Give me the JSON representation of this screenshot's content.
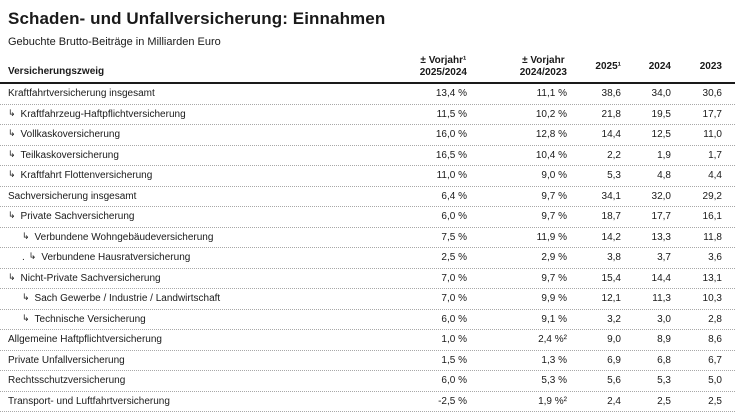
{
  "page": {
    "title": "Schaden- und Unfallversicherung: Einnahmen",
    "subtitle": "Gebuchte Brutto-Beiträge in Milliarden Euro"
  },
  "table": {
    "row_header": "Versicherungszweig",
    "branch_glyph": "↳",
    "artifact_dot": ".",
    "header": {
      "c2_line1": "± Vorjahr¹",
      "c2_line2": "2025/2024",
      "c3_line1": "± Vorjahr",
      "c3_line2": "2024/2023",
      "c4": "2025¹",
      "c5": "2024",
      "c6": "2023"
    }
  },
  "colors": {
    "text": "#1a1a1a",
    "row_divider": "#a8a8a8",
    "header_rule": "#1a1a1a",
    "background": "#ffffff"
  },
  "chart_data": {
    "type": "table",
    "title": "Schaden- und Unfallversicherung: Einnahmen",
    "subtitle": "Gebuchte Brutto-Beiträge in Milliarden Euro",
    "columns": [
      "Versicherungszweig",
      "± Vorjahr¹ 2025/2024",
      "± Vorjahr 2024/2023",
      "2025¹",
      "2024",
      "2023"
    ],
    "rows": [
      {
        "label": "Kraftfahrtversicherung insgesamt",
        "level": 0,
        "values": [
          "13,4 %",
          "11,1 %",
          "38,6",
          "34,0",
          "30,6"
        ]
      },
      {
        "label": "Kraftfahrzeug-Haftpflichtversicherung",
        "level": 1,
        "values": [
          "11,5 %",
          "10,2 %",
          "21,8",
          "19,5",
          "17,7"
        ]
      },
      {
        "label": "Vollkaskoversicherung",
        "level": 1,
        "values": [
          "16,0 %",
          "12,8 %",
          "14,4",
          "12,5",
          "11,0"
        ]
      },
      {
        "label": "Teilkaskoversicherung",
        "level": 1,
        "values": [
          "16,5 %",
          "10,4 %",
          "2,2",
          "1,9",
          "1,7"
        ]
      },
      {
        "label": "Kraftfahrt Flottenversicherung",
        "level": 1,
        "values": [
          "11,0 %",
          "9,0 %",
          "5,3",
          "4,8",
          "4,4"
        ]
      },
      {
        "label": "Sachversicherung insgesamt",
        "level": 0,
        "values": [
          "6,4 %",
          "9,7 %",
          "34,1",
          "32,0",
          "29,2"
        ]
      },
      {
        "label": "Private Sachversicherung",
        "level": 1,
        "values": [
          "6,0 %",
          "9,7 %",
          "18,7",
          "17,7",
          "16,1"
        ]
      },
      {
        "label": "Verbundene Wohngebäudeversicherung",
        "level": 2,
        "values": [
          "7,5 %",
          "11,9 %",
          "14,2",
          "13,3",
          "11,8"
        ]
      },
      {
        "label": "Verbundene Hausratversicherung",
        "level": 2,
        "prefix_dot": true,
        "values": [
          "2,5 %",
          "2,9 %",
          "3,8",
          "3,7",
          "3,6"
        ]
      },
      {
        "label": "Nicht-Private Sachversicherung",
        "level": 1,
        "values": [
          "7,0 %",
          "9,7 %",
          "15,4",
          "14,4",
          "13,1"
        ]
      },
      {
        "label": "Sach Gewerbe / Industrie / Landwirtschaft",
        "level": 2,
        "values": [
          "7,0 %",
          "9,9 %",
          "12,1",
          "11,3",
          "10,3"
        ]
      },
      {
        "label": "Technische Versicherung",
        "level": 2,
        "values": [
          "6,0 %",
          "9,1 %",
          "3,2",
          "3,0",
          "2,8"
        ]
      },
      {
        "label": "Allgemeine Haftpflichtversicherung",
        "level": 0,
        "values": [
          "1,0 %",
          "2,4 %²",
          "9,0",
          "8,9",
          "8,6"
        ]
      },
      {
        "label": "Private Unfallversicherung",
        "level": 0,
        "values": [
          "1,5 %",
          "1,3 %",
          "6,9",
          "6,8",
          "6,7"
        ]
      },
      {
        "label": "Rechtsschutzversicherung",
        "level": 0,
        "values": [
          "6,0 %",
          "5,3 %",
          "5,6",
          "5,3",
          "5,0"
        ]
      },
      {
        "label": "Transport- und Luftfahrtversicherung",
        "level": 0,
        "values": [
          "-2,5 %",
          "1,9 %²",
          "2,4",
          "2,5",
          "2,5"
        ]
      }
    ]
  }
}
